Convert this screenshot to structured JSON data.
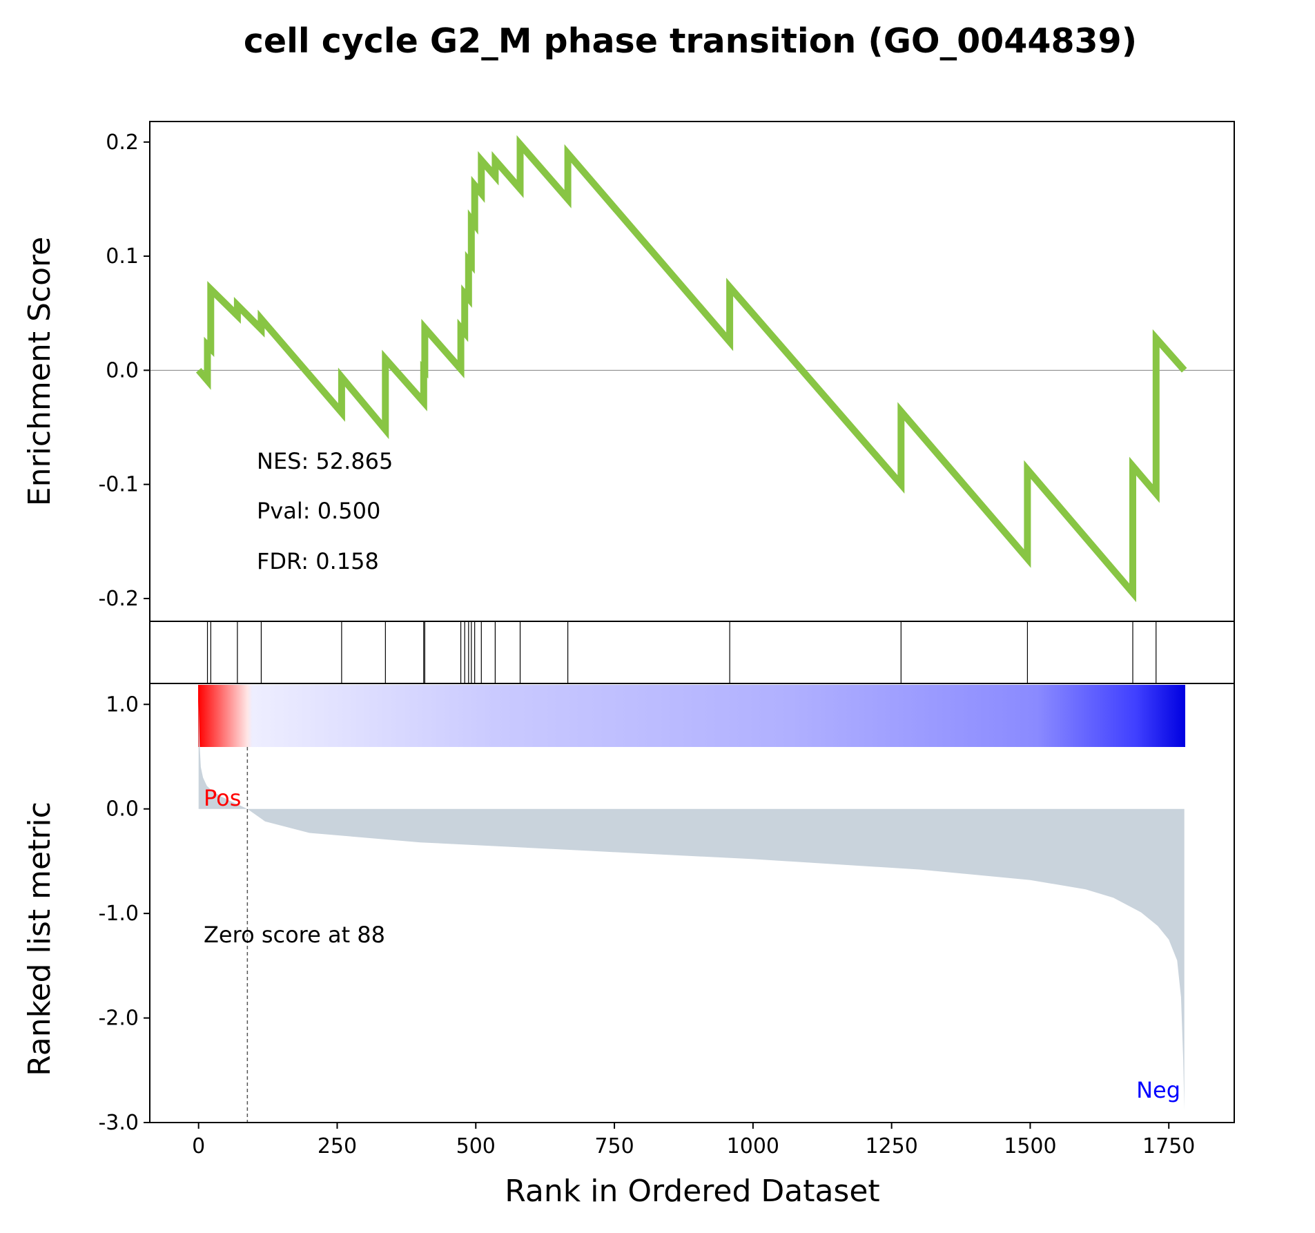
{
  "colors": {
    "es_line": "#88c544",
    "rank_fill": "#c9d3dc",
    "pos": "#ff0000",
    "neg": "#0000ff",
    "zero_line": "#808080"
  },
  "chart_data": {
    "type": "line",
    "title": "cell cycle G2_M phase transition (GO_0044839)",
    "xlabel": "Rank in Ordered Dataset",
    "es_ylabel": "Enrichment Score",
    "rank_ylabel": "Ranked list metric",
    "n_genes": 1779,
    "xlim": [
      -88,
      1868
    ],
    "es_ylim": [
      -0.22,
      0.218
    ],
    "rank_ylim": [
      -3.0,
      1.2
    ],
    "xticks": [
      "0",
      "250",
      "500",
      "750",
      "1000",
      "1250",
      "1500",
      "1750"
    ],
    "es_yticks": [
      "-0.2",
      "-0.1",
      "0.0",
      "0.1",
      "0.2"
    ],
    "rank_yticks": [
      "-3.0",
      "-2.0",
      "-1.0",
      "0.0",
      "1.0"
    ],
    "stats": {
      "nes": "NES: 52.865",
      "pval": "Pval: 0.500",
      "fdr": "FDR: 0.158"
    },
    "hits": [
      16,
      22,
      70,
      113,
      258,
      337,
      406,
      408,
      473,
      480,
      487,
      492,
      498,
      510,
      535,
      580,
      666,
      958,
      1267,
      1495,
      1685,
      1727
    ],
    "running_es": {
      "x": [
        0,
        16,
        16,
        22,
        22,
        70,
        70,
        113,
        113,
        258,
        258,
        337,
        337,
        406,
        406,
        408,
        408,
        473,
        473,
        480,
        480,
        487,
        487,
        492,
        492,
        498,
        498,
        510,
        510,
        535,
        535,
        580,
        580,
        666,
        666,
        958,
        958,
        1267,
        1267,
        1495,
        1495,
        1685,
        1685,
        1727,
        1727,
        1778
      ],
      "y": [
        0,
        -0.009,
        0.022,
        0.019,
        0.071,
        0.048,
        0.057,
        0.036,
        0.045,
        -0.037,
        -0.006,
        -0.052,
        0.01,
        -0.028,
        0.001,
        0.0,
        0.037,
        0.001,
        0.037,
        0.033,
        0.067,
        0.063,
        0.096,
        0.093,
        0.132,
        0.128,
        0.162,
        0.155,
        0.184,
        0.17,
        0.184,
        0.159,
        0.198,
        0.15,
        0.19,
        0.025,
        0.073,
        -0.1,
        -0.036,
        -0.165,
        -0.087,
        -0.195,
        -0.084,
        -0.108,
        0.028,
        0
      ]
    },
    "ranked_metric": {
      "x": [
        0,
        2,
        4,
        8,
        15,
        25,
        40,
        60,
        88,
        120,
        200,
        400,
        700,
        1000,
        1300,
        1500,
        1600,
        1650,
        1700,
        1730,
        1750,
        1765,
        1772,
        1776,
        1778
      ],
      "y": [
        1.03,
        0.6,
        0.4,
        0.3,
        0.22,
        0.17,
        0.12,
        0.07,
        0.0,
        -0.12,
        -0.23,
        -0.32,
        -0.4,
        -0.48,
        -0.58,
        -0.68,
        -0.77,
        -0.85,
        -0.99,
        -1.12,
        -1.25,
        -1.45,
        -1.8,
        -2.4,
        -2.88
      ]
    },
    "pos_label": "Pos",
    "neg_label": "Neg",
    "zero_cross_rank": 88,
    "zero_label": "Zero score at 88"
  }
}
